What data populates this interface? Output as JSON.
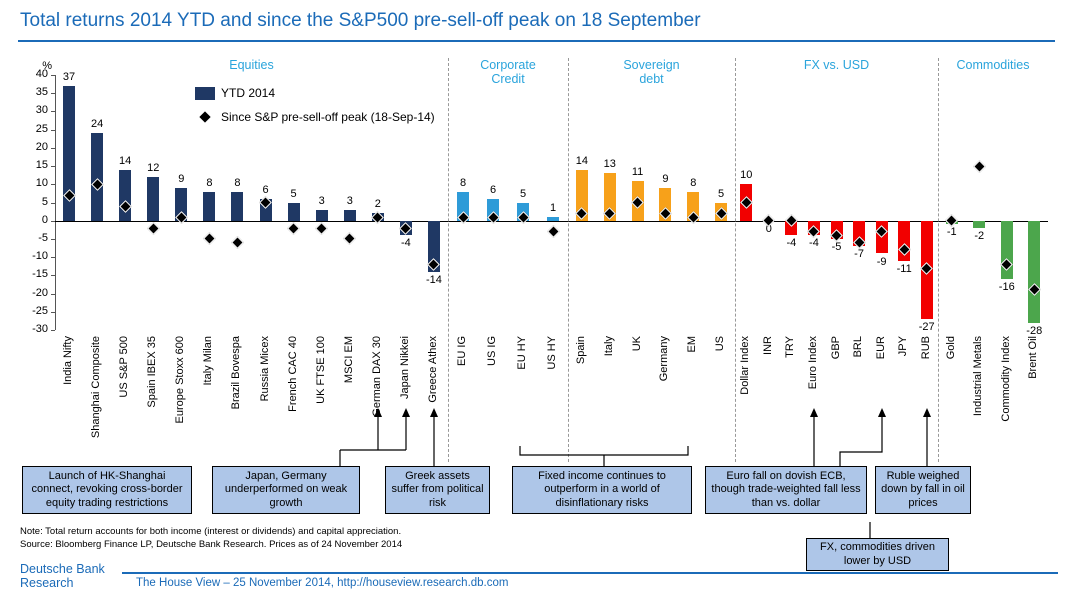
{
  "title": "Total returns 2014 YTD and since the S&P500 pre-sell-off peak on 18 September",
  "legend": {
    "ytd": "YTD 2014",
    "since": "Since S&P pre-sell-off peak (18-Sep-14)"
  },
  "colors": {
    "accent_blue": "#1B6BB8",
    "section_cyan": "#2AA4DC",
    "equities": "#1F3864",
    "corporate_credit": "#2E9BD8",
    "sovereign_debt": "#F7A11A",
    "fx": "#F20000",
    "commodities": "#4CA64C",
    "callout_bg": "#AEC6E8",
    "marker": "#000000"
  },
  "chart_data": {
    "type": "bar",
    "title": "Total returns 2014 YTD and since the S&P500 pre-sell-off peak on 18 September",
    "xlabel": "",
    "ylabel": "%",
    "ylim": [
      -30,
      40
    ],
    "ytick_step": 5,
    "grid": false,
    "legend_position": "top-left",
    "series_names": [
      "YTD 2014",
      "Since S&P pre-sell-off peak (18-Sep-14)"
    ],
    "groups": [
      {
        "label": "Equities",
        "color": "#1F3864",
        "bars": [
          {
            "name": "India Nifty",
            "ytd": 37,
            "since": 7
          },
          {
            "name": "Shanghai Composite",
            "ytd": 24,
            "since": 10
          },
          {
            "name": "US S&P 500",
            "ytd": 14,
            "since": 4
          },
          {
            "name": "Spain IBEX 35",
            "ytd": 12,
            "since": -2
          },
          {
            "name": "Europe Stoxx 600",
            "ytd": 9,
            "since": 1
          },
          {
            "name": "Italy Milan",
            "ytd": 8,
            "since": -5
          },
          {
            "name": "Brazil Bovespa",
            "ytd": 8,
            "since": -6
          },
          {
            "name": "Russia Micex",
            "ytd": 6,
            "since": 5
          },
          {
            "name": "French CAC 40",
            "ytd": 5,
            "since": -2
          },
          {
            "name": "UK FTSE 100",
            "ytd": 3,
            "since": -2
          },
          {
            "name": "MSCI EM",
            "ytd": 3,
            "since": -5
          },
          {
            "name": "German DAX 30",
            "ytd": 2,
            "since": 1
          },
          {
            "name": "Japan Nikkei",
            "ytd": -4,
            "since": -2
          },
          {
            "name": "Greece Athex",
            "ytd": -14,
            "since": -12
          }
        ]
      },
      {
        "label": "Corporate Credit",
        "color": "#2E9BD8",
        "bars": [
          {
            "name": "EU IG",
            "ytd": 8,
            "since": 1
          },
          {
            "name": "US IG",
            "ytd": 6,
            "since": 1
          },
          {
            "name": "EU HY",
            "ytd": 5,
            "since": 1
          },
          {
            "name": "US HY",
            "ytd": 1,
            "since": -3
          }
        ]
      },
      {
        "label": "Sovereign debt",
        "color": "#F7A11A",
        "bars": [
          {
            "name": "Spain",
            "ytd": 14,
            "since": 2
          },
          {
            "name": "Italy",
            "ytd": 13,
            "since": 2
          },
          {
            "name": "UK",
            "ytd": 11,
            "since": 5
          },
          {
            "name": "Germany",
            "ytd": 9,
            "since": 2
          },
          {
            "name": "EM",
            "ytd": 8,
            "since": 1
          },
          {
            "name": "US",
            "ytd": 5,
            "since": 2
          }
        ]
      },
      {
        "label": "FX vs. USD",
        "color": "#F20000",
        "bars": [
          {
            "name": "Dollar Index",
            "ytd": 10,
            "since": 5
          },
          {
            "name": "INR",
            "ytd": 0,
            "since": 0
          },
          {
            "name": "TRY",
            "ytd": -4,
            "since": 0
          },
          {
            "name": "Euro Index",
            "ytd": -4,
            "since": -3
          },
          {
            "name": "GBP",
            "ytd": -5,
            "since": -4
          },
          {
            "name": "BRL",
            "ytd": -7,
            "since": -6
          },
          {
            "name": "EUR",
            "ytd": -9,
            "since": -3
          },
          {
            "name": "JPY",
            "ytd": -11,
            "since": -8
          },
          {
            "name": "RUB",
            "ytd": -27,
            "since": -13
          }
        ]
      },
      {
        "label": "Commodities",
        "color": "#4CA64C",
        "bars": [
          {
            "name": "Gold",
            "ytd": -1,
            "since": 0
          },
          {
            "name": "Industrial Metals",
            "ytd": -2,
            "since": 15
          },
          {
            "name": "Commodity Index",
            "ytd": -16,
            "since": -12
          },
          {
            "name": "Brent Oil",
            "ytd": -28,
            "since": -19
          }
        ]
      }
    ]
  },
  "callouts": [
    {
      "text": "Launch of HK-Shanghai connect, revoking cross-border equity trading restrictions"
    },
    {
      "text": "Japan, Germany underperformed on weak growth"
    },
    {
      "text": "Greek assets suffer from political risk"
    },
    {
      "text": "Fixed income continues to outperform in a world of disinflationary risks"
    },
    {
      "text": "Euro fall on dovish ECB, though trade-weighted fall less than vs. dollar"
    },
    {
      "text": "Ruble weighed down by fall in oil prices"
    },
    {
      "text": "FX, commodities driven lower by USD"
    }
  ],
  "notes": {
    "note": "Note: Total return accounts for both income (interest or dividends) and capital appreciation.",
    "source": "Source: Bloomberg Finance LP, Deutsche Bank Research. Prices as of 24 November 2014"
  },
  "footer": {
    "brand_line1": "Deutsche Bank",
    "brand_line2": "Research",
    "text": "The House View – 25 November 2014, http://houseview.research.db.com"
  }
}
